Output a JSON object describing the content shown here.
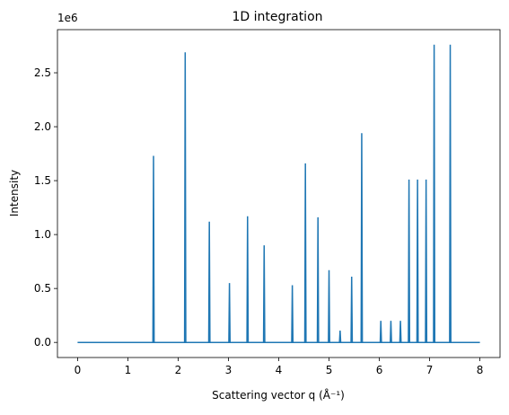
{
  "chart_data": {
    "type": "line",
    "title": "1D integration",
    "xlabel": "Scattering vector q (Å⁻¹)",
    "ylabel": "Intensity",
    "offset_text": "1e6",
    "xlim": [
      -0.4,
      8.4
    ],
    "ylim": [
      -0.14,
      2.9
    ],
    "x_ticks": [
      0,
      1,
      2,
      3,
      4,
      5,
      6,
      7,
      8
    ],
    "x_tick_labels": [
      "0",
      "1",
      "2",
      "3",
      "4",
      "5",
      "6",
      "7",
      "8"
    ],
    "y_ticks": [
      0,
      0.5,
      1.0,
      1.5,
      2.0,
      2.5
    ],
    "y_tick_labels": [
      "0.0",
      "0.5",
      "1.0",
      "1.5",
      "2.0",
      "2.5"
    ],
    "line_color": "#1f77b4",
    "grid": false,
    "x_range": [
      0,
      8
    ],
    "baseline": 0,
    "peaks": [
      {
        "q": 1.51,
        "intensity": 1.73
      },
      {
        "q": 2.14,
        "intensity": 2.69
      },
      {
        "q": 2.62,
        "intensity": 1.12
      },
      {
        "q": 3.02,
        "intensity": 0.55
      },
      {
        "q": 3.38,
        "intensity": 1.17
      },
      {
        "q": 3.71,
        "intensity": 0.9
      },
      {
        "q": 4.27,
        "intensity": 0.53
      },
      {
        "q": 4.53,
        "intensity": 1.66
      },
      {
        "q": 4.78,
        "intensity": 1.16
      },
      {
        "q": 5.0,
        "intensity": 0.67
      },
      {
        "q": 5.22,
        "intensity": 0.11
      },
      {
        "q": 5.45,
        "intensity": 0.61
      },
      {
        "q": 5.65,
        "intensity": 1.94
      },
      {
        "q": 6.03,
        "intensity": 0.2
      },
      {
        "q": 6.23,
        "intensity": 0.2
      },
      {
        "q": 6.42,
        "intensity": 0.2
      },
      {
        "q": 6.59,
        "intensity": 1.51
      },
      {
        "q": 6.76,
        "intensity": 1.51
      },
      {
        "q": 6.93,
        "intensity": 1.51
      },
      {
        "q": 7.09,
        "intensity": 2.76
      },
      {
        "q": 7.41,
        "intensity": 2.76
      }
    ]
  }
}
